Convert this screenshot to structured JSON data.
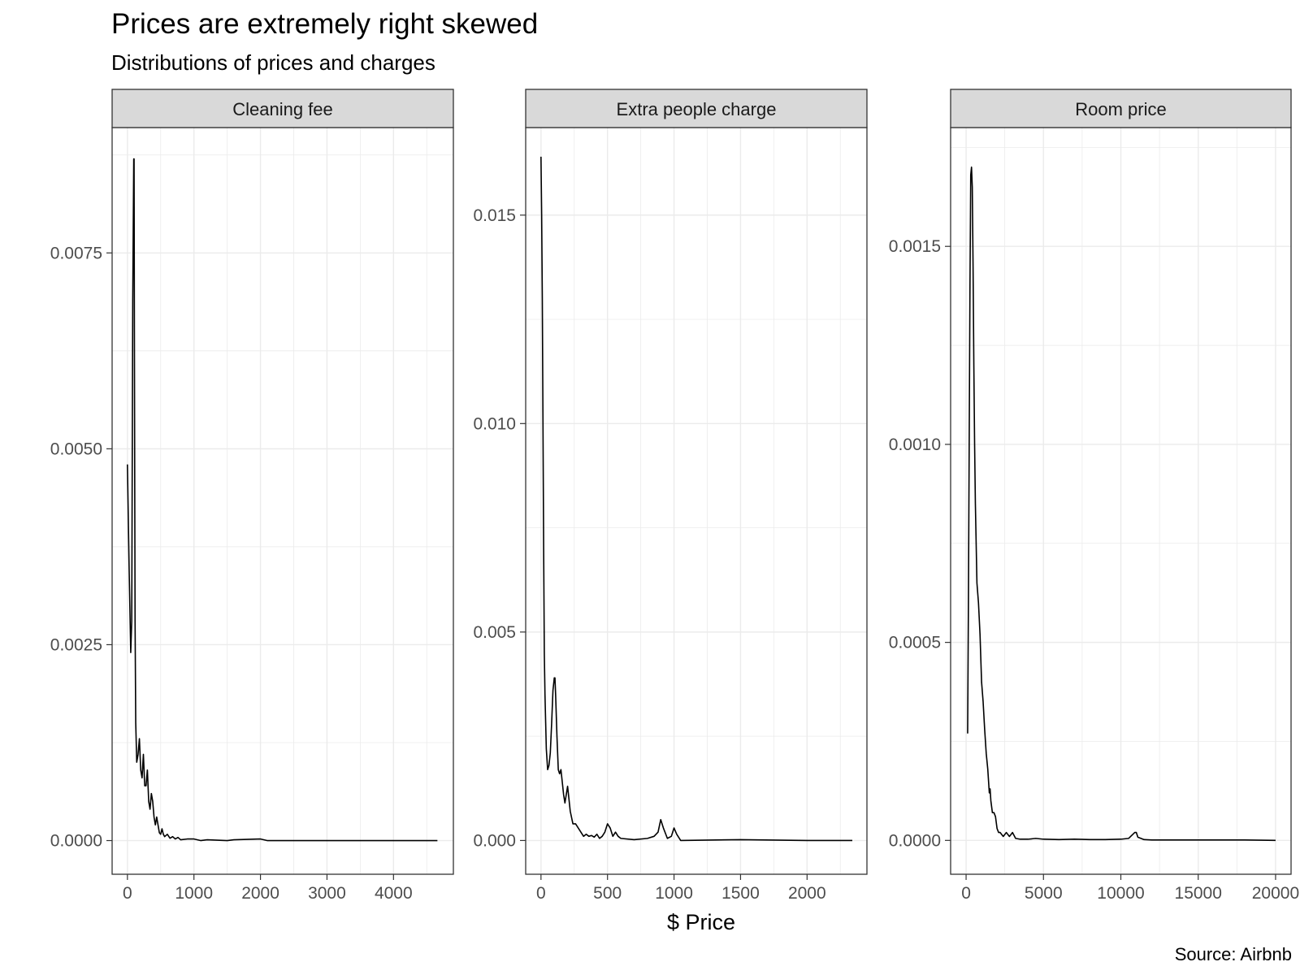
{
  "title": "Prices are extremely right skewed",
  "subtitle": "Distributions of prices and charges",
  "caption": "Source: Airbnb",
  "xlabel": "$ Price",
  "colors": {
    "line": "#000000",
    "strip": "#d9d9d9",
    "grid": "#ebebeb",
    "tick_text": "#4d4d4d"
  },
  "chart_data": [
    {
      "type": "line",
      "panel": "Cleaning fee",
      "xlim": [
        -230,
        4900
      ],
      "ylim": [
        -0.00043,
        0.0091
      ],
      "x_ticks": [
        0,
        1000,
        2000,
        3000,
        4000
      ],
      "x_tick_labels": [
        "0",
        "1000",
        "2000",
        "3000",
        "4000"
      ],
      "y_ticks": [
        0,
        0.0025,
        0.005,
        0.0075
      ],
      "y_tick_labels": [
        "0.0000",
        "0.0025",
        "0.0050",
        "0.0075"
      ],
      "x": [
        0,
        25,
        50,
        65,
        80,
        95,
        100,
        105,
        110,
        115,
        125,
        140,
        160,
        180,
        200,
        220,
        240,
        260,
        280,
        300,
        320,
        340,
        360,
        380,
        400,
        420,
        440,
        460,
        480,
        500,
        520,
        540,
        560,
        600,
        640,
        680,
        720,
        760,
        800,
        900,
        1000,
        1100,
        1200,
        1500,
        1600,
        2000,
        2100,
        3000,
        4000,
        4660
      ],
      "y": [
        0.0048,
        0.0035,
        0.0024,
        0.0028,
        0.0069,
        0.0087,
        0.0087,
        0.0065,
        0.0045,
        0.0028,
        0.0015,
        0.001,
        0.0011,
        0.0013,
        0.0009,
        0.0008,
        0.0011,
        0.0007,
        0.0007,
        0.0009,
        0.0005,
        0.0004,
        0.0006,
        0.0005,
        0.0003,
        0.0002,
        0.0003,
        0.0002,
        0.0001,
        8e-05,
        0.00015,
        8e-05,
        5e-05,
        8e-05,
        3e-05,
        5e-05,
        2e-05,
        4e-05,
        1e-05,
        2e-05,
        2e-05,
        0.0,
        1e-05,
        0.0,
        1e-05,
        2e-05,
        0.0,
        0.0,
        0.0,
        0.0
      ]
    },
    {
      "type": "line",
      "panel": "Extra people charge",
      "xlim": [
        -115,
        2450
      ],
      "ylim": [
        -0.00081,
        0.0171
      ],
      "x_ticks": [
        0,
        500,
        1000,
        1500,
        2000
      ],
      "x_tick_labels": [
        "0",
        "500",
        "1000",
        "1500",
        "2000"
      ],
      "y_ticks": [
        0,
        0.005,
        0.01,
        0.015
      ],
      "y_tick_labels": [
        "0.000",
        "0.005",
        "0.010",
        "0.015"
      ],
      "x": [
        0,
        5,
        10,
        15,
        20,
        25,
        30,
        40,
        50,
        60,
        70,
        80,
        90,
        100,
        105,
        110,
        120,
        130,
        140,
        150,
        160,
        170,
        180,
        190,
        200,
        210,
        220,
        240,
        260,
        280,
        300,
        320,
        340,
        360,
        380,
        400,
        420,
        440,
        460,
        480,
        500,
        520,
        540,
        560,
        580,
        600,
        700,
        800,
        850,
        880,
        900,
        920,
        950,
        980,
        1000,
        1020,
        1050,
        1500,
        2000,
        2340
      ],
      "y": [
        0.0164,
        0.015,
        0.013,
        0.01,
        0.007,
        0.0045,
        0.0035,
        0.0022,
        0.0017,
        0.0018,
        0.0021,
        0.0028,
        0.0036,
        0.0039,
        0.0039,
        0.0035,
        0.0025,
        0.0017,
        0.0016,
        0.0017,
        0.0014,
        0.0011,
        0.0009,
        0.0011,
        0.0013,
        0.001,
        0.0007,
        0.0004,
        0.0004,
        0.0003,
        0.0002,
        0.0001,
        0.00015,
        0.0001,
        0.00012,
        8e-05,
        0.00015,
        5e-05,
        0.0001,
        0.0002,
        0.0004,
        0.0003,
        0.0001,
        0.0002,
        0.0001,
        5e-05,
        2e-05,
        5e-05,
        0.0001,
        0.0002,
        0.0005,
        0.0003,
        5e-05,
        0.0001,
        0.0003,
        0.00015,
        0.0,
        2e-05,
        0.0,
        0.0
      ]
    },
    {
      "type": "line",
      "panel": "Room price",
      "xlim": [
        -1000,
        21000
      ],
      "ylim": [
        -8.55e-05,
        0.0018
      ],
      "x_ticks": [
        0,
        5000,
        10000,
        15000,
        20000
      ],
      "x_tick_labels": [
        "0",
        "5000",
        "10000",
        "15000",
        "20000"
      ],
      "y_ticks": [
        0,
        0.0005,
        0.001,
        0.0015
      ],
      "y_tick_labels": [
        "0.0000",
        "0.0005",
        "0.0010",
        "0.0015"
      ],
      "x": [
        100,
        150,
        200,
        250,
        300,
        350,
        400,
        450,
        500,
        550,
        600,
        700,
        800,
        900,
        1000,
        1100,
        1200,
        1300,
        1400,
        1500,
        1550,
        1600,
        1700,
        1800,
        1900,
        2000,
        2100,
        2200,
        2400,
        2600,
        2800,
        3000,
        3200,
        3500,
        4000,
        4500,
        5000,
        6000,
        7000,
        8000,
        9000,
        10000,
        10500,
        10900,
        11000,
        11100,
        11500,
        12000,
        15000,
        18000,
        20000
      ],
      "y": [
        0.00027,
        0.0006,
        0.001,
        0.0014,
        0.00168,
        0.0017,
        0.00165,
        0.00145,
        0.0012,
        0.001,
        0.00085,
        0.00065,
        0.0006,
        0.00052,
        0.0004,
        0.00035,
        0.00028,
        0.00022,
        0.00018,
        0.00012,
        0.00013,
        0.0001,
        7e-05,
        7e-05,
        6e-05,
        3e-05,
        2e-05,
        2e-05,
        1e-05,
        2e-05,
        1e-05,
        2e-05,
        5e-06,
        3e-06,
        3e-06,
        5e-06,
        3e-06,
        2e-06,
        3e-06,
        2e-06,
        2e-06,
        3e-06,
        5e-06,
        2e-05,
        2e-05,
        8e-06,
        2e-06,
        1e-06,
        1e-06,
        1e-06,
        0.0
      ]
    }
  ]
}
